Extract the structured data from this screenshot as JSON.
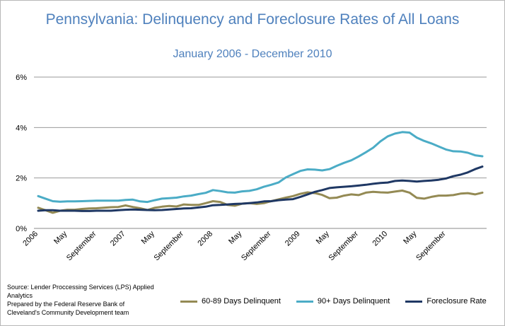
{
  "chart_data": {
    "type": "line",
    "title": "Pennsylvania: Delinquency and Foreclosure Rates of All Loans",
    "subtitle": "January 2006 - December 2010",
    "ylim": [
      0,
      6
    ],
    "yticks": [
      "0%",
      "2%",
      "4%",
      "6%"
    ],
    "ytick_values": [
      0,
      2,
      4,
      6
    ],
    "grid": true,
    "legend_position": "bottom",
    "x_tick_labels": [
      {
        "label": "2006",
        "month_index": 0
      },
      {
        "label": "May",
        "month_index": 4
      },
      {
        "label": "September",
        "month_index": 8
      },
      {
        "label": "2007",
        "month_index": 12
      },
      {
        "label": "May",
        "month_index": 16
      },
      {
        "label": "September",
        "month_index": 20
      },
      {
        "label": "2008",
        "month_index": 24
      },
      {
        "label": "May",
        "month_index": 28
      },
      {
        "label": "September",
        "month_index": 32
      },
      {
        "label": "2009",
        "month_index": 36
      },
      {
        "label": "May",
        "month_index": 40
      },
      {
        "label": "September",
        "month_index": 44
      },
      {
        "label": "2010",
        "month_index": 48
      },
      {
        "label": "May",
        "month_index": 52
      },
      {
        "label": "September",
        "month_index": 56
      }
    ],
    "series": [
      {
        "name": "60-89 Days Delinquent",
        "color": "#948a54",
        "values": [
          0.82,
          0.72,
          0.62,
          0.7,
          0.74,
          0.74,
          0.77,
          0.79,
          0.8,
          0.82,
          0.84,
          0.85,
          0.91,
          0.85,
          0.8,
          0.73,
          0.82,
          0.86,
          0.89,
          0.87,
          0.95,
          0.93,
          0.93,
          1.0,
          1.08,
          1.05,
          0.93,
          0.9,
          0.98,
          1.0,
          0.97,
          1.0,
          1.08,
          1.15,
          1.22,
          1.28,
          1.37,
          1.43,
          1.4,
          1.33,
          1.2,
          1.22,
          1.3,
          1.35,
          1.32,
          1.42,
          1.45,
          1.43,
          1.42,
          1.46,
          1.5,
          1.42,
          1.21,
          1.18,
          1.25,
          1.3,
          1.3,
          1.32,
          1.38,
          1.4,
          1.35,
          1.42
        ]
      },
      {
        "name": "90+ Days Delinquent",
        "color": "#4bacc6",
        "values": [
          1.28,
          1.18,
          1.08,
          1.06,
          1.07,
          1.07,
          1.08,
          1.09,
          1.1,
          1.1,
          1.1,
          1.1,
          1.13,
          1.14,
          1.07,
          1.05,
          1.12,
          1.18,
          1.2,
          1.22,
          1.27,
          1.3,
          1.36,
          1.41,
          1.52,
          1.48,
          1.43,
          1.42,
          1.47,
          1.49,
          1.55,
          1.65,
          1.73,
          1.82,
          2.02,
          2.15,
          2.28,
          2.34,
          2.33,
          2.3,
          2.35,
          2.48,
          2.6,
          2.7,
          2.85,
          3.02,
          3.2,
          3.45,
          3.65,
          3.76,
          3.82,
          3.8,
          3.6,
          3.47,
          3.37,
          3.25,
          3.13,
          3.06,
          3.05,
          3.0,
          2.9,
          2.86
        ]
      },
      {
        "name": "Foreclosure Rate",
        "color": "#1f3864",
        "values": [
          0.7,
          0.72,
          0.72,
          0.7,
          0.7,
          0.7,
          0.69,
          0.69,
          0.7,
          0.7,
          0.7,
          0.72,
          0.74,
          0.75,
          0.74,
          0.73,
          0.72,
          0.73,
          0.75,
          0.77,
          0.79,
          0.8,
          0.83,
          0.86,
          0.92,
          0.93,
          0.95,
          0.97,
          0.98,
          1.0,
          1.03,
          1.07,
          1.08,
          1.12,
          1.14,
          1.16,
          1.25,
          1.35,
          1.45,
          1.52,
          1.6,
          1.63,
          1.65,
          1.67,
          1.7,
          1.73,
          1.77,
          1.8,
          1.82,
          1.88,
          1.9,
          1.88,
          1.86,
          1.88,
          1.9,
          1.93,
          1.98,
          2.07,
          2.13,
          2.22,
          2.35,
          2.45
        ]
      }
    ]
  },
  "source_lines": [
    "Source: Lender Proccessing Services (LPS) Applied",
    "Analytics",
    "Prepared by the Federal Reserve Bank of",
    "Cleveland's Community Development team"
  ]
}
